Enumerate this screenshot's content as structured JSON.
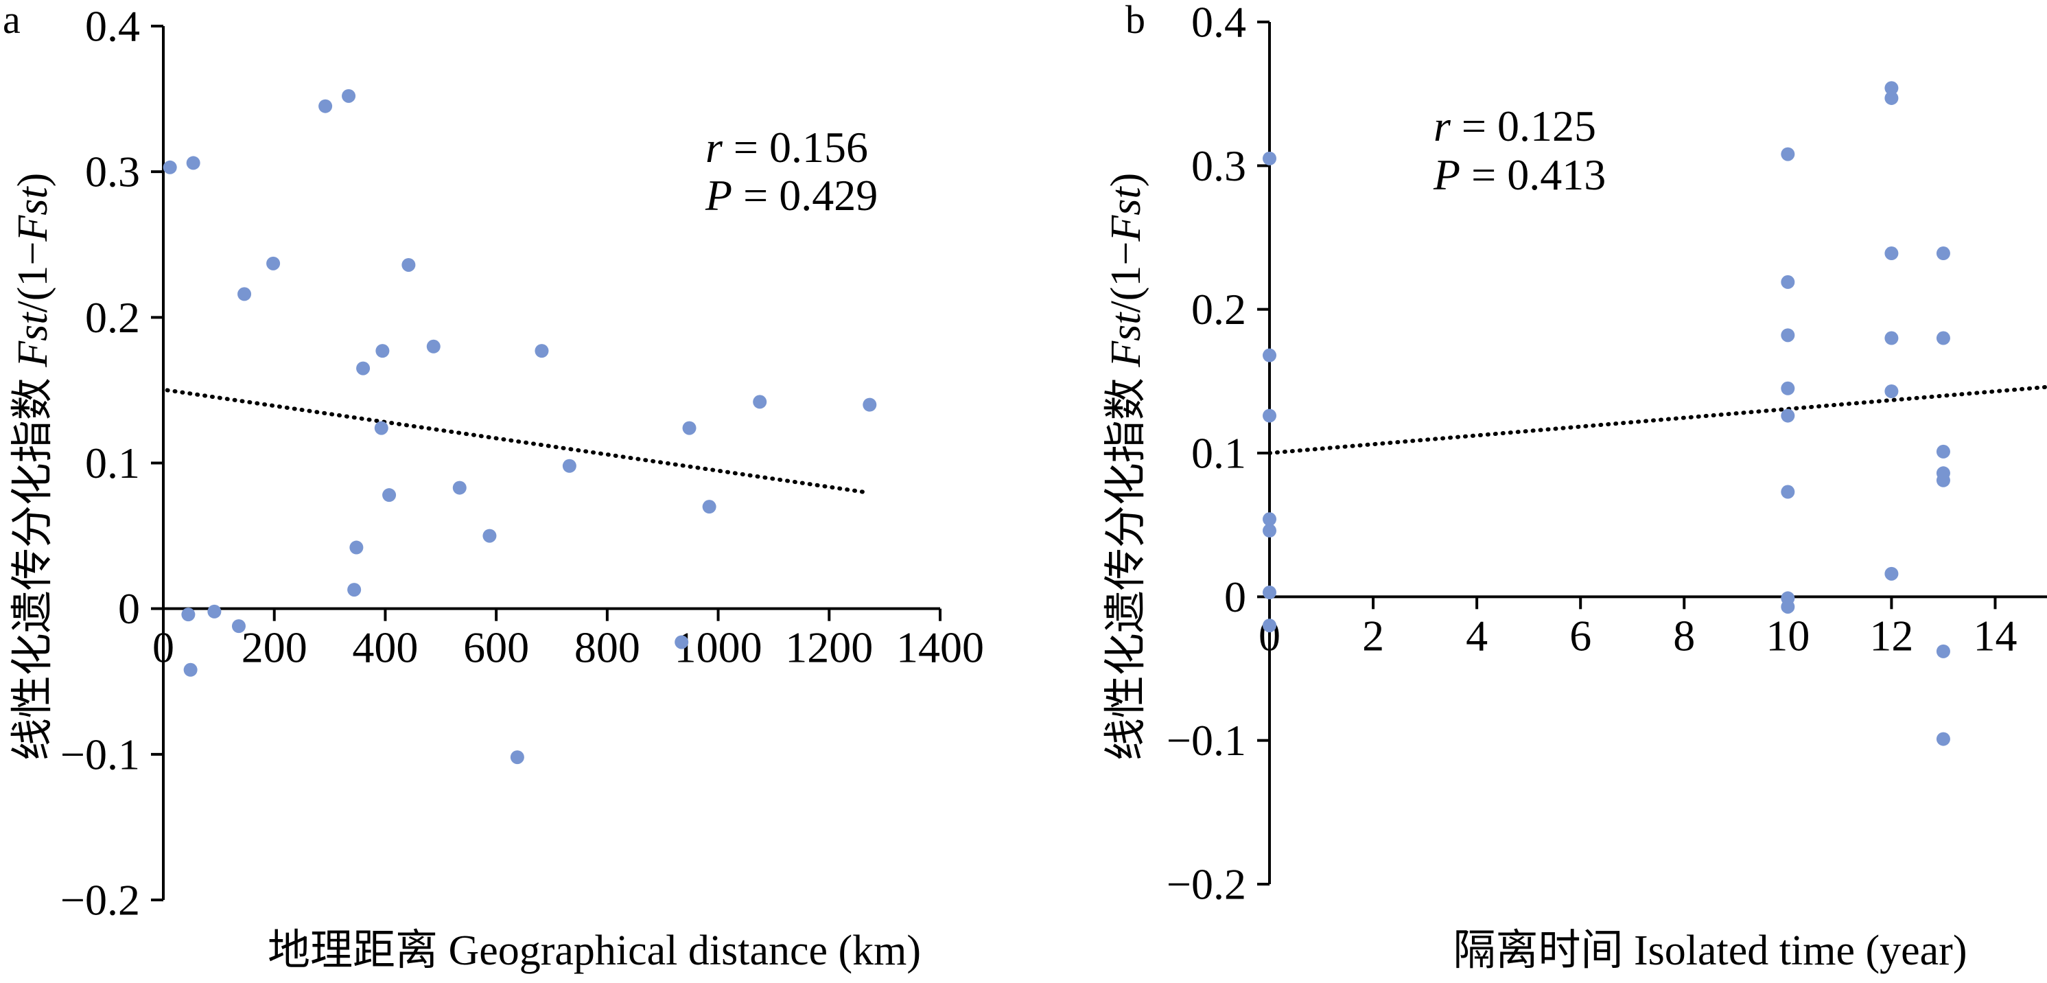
{
  "chart_data": [
    {
      "type": "scatter",
      "panel_label": "a",
      "xlabel": "地理距离 Geographical distance (km)",
      "ylabel": [
        {
          "text": "线性化遗传分化指数 ",
          "italic": false
        },
        {
          "text": "Fst",
          "italic": true
        },
        {
          "text": "/(1−",
          "italic": false
        },
        {
          "text": "Fst",
          "italic": true
        },
        {
          "text": ")",
          "italic": false
        }
      ],
      "xlim": [
        0,
        1400
      ],
      "ylim": [
        -0.2,
        0.4
      ],
      "xticks": {
        "values": [
          0,
          200,
          400,
          600,
          800,
          1000,
          1200,
          1400
        ],
        "labels": [
          "0",
          "200",
          "400",
          "600",
          "800",
          "1000",
          "1200",
          "1400"
        ]
      },
      "yticks": {
        "values": [
          0.4,
          0.3,
          0.2,
          0.1,
          0,
          -0.1,
          -0.2
        ],
        "labels": [
          "0.4",
          "0.3",
          "0.2",
          "0.1",
          "0",
          "−0.1",
          "−0.2"
        ]
      },
      "grid": false,
      "point_color": "#7895D1",
      "series": [
        {
          "x": [
            12,
            54,
            292,
            334,
            198,
            146,
            442,
            487,
            395,
            360,
            682,
            393,
            1075,
            1273,
            948,
            732,
            534,
            407,
            984,
            588,
            348,
            344,
            45,
            92,
            136,
            49,
            934,
            638
          ],
          "y": [
            0.303,
            0.306,
            0.345,
            0.352,
            0.237,
            0.216,
            0.236,
            0.18,
            0.177,
            0.165,
            0.177,
            0.124,
            0.142,
            0.14,
            0.124,
            0.098,
            0.083,
            0.078,
            0.07,
            0.05,
            0.042,
            0.013,
            -0.004,
            -0.002,
            -0.012,
            -0.042,
            -0.023,
            -0.102
          ]
        }
      ],
      "trendline": {
        "style": "dotted",
        "color": "#000000",
        "x": [
          7,
          1264
        ],
        "y": [
          0.15,
          0.08
        ]
      },
      "annotations": [
        {
          "symbol": "r",
          "text": " = 0.156"
        },
        {
          "symbol": "P",
          "text": " = 0.429"
        }
      ]
    },
    {
      "type": "scatter",
      "panel_label": "b",
      "xlabel": "隔离时间 Isolated time (year)",
      "ylabel": [
        {
          "text": "线性化遗传分化指数 ",
          "italic": false
        },
        {
          "text": "Fst",
          "italic": true
        },
        {
          "text": "/(1−",
          "italic": false
        },
        {
          "text": "Fst",
          "italic": true
        },
        {
          "text": ")",
          "italic": false
        }
      ],
      "xlim": [
        0,
        15
      ],
      "ylim": [
        -0.2,
        0.4
      ],
      "xticks": {
        "values": [
          0,
          2,
          4,
          6,
          8,
          10,
          12,
          14
        ],
        "labels": [
          "0",
          "2",
          "4",
          "6",
          "8",
          "10",
          "12",
          "14"
        ]
      },
      "yticks": {
        "values": [
          0.4,
          0.3,
          0.2,
          0.1,
          0,
          -0.1,
          -0.2
        ],
        "labels": [
          "0.4",
          "0.3",
          "0.2",
          "0.1",
          "0",
          "−0.1",
          "−0.2"
        ]
      },
      "grid": false,
      "point_color": "#7895D1",
      "series": [
        {
          "x": [
            0,
            0,
            0,
            0,
            0,
            0,
            0,
            10,
            10,
            10,
            10,
            10,
            10,
            10,
            10,
            12,
            12,
            12,
            12,
            12,
            12,
            13,
            13,
            13,
            13,
            13,
            13,
            13
          ],
          "y": [
            0.305,
            0.168,
            0.126,
            0.054,
            0.046,
            0.003,
            -0.02,
            0.308,
            0.219,
            0.182,
            0.145,
            0.126,
            0.073,
            -0.001,
            -0.007,
            0.354,
            0.347,
            0.239,
            0.18,
            0.143,
            0.016,
            0.239,
            0.18,
            0.101,
            0.086,
            0.081,
            -0.038,
            -0.099
          ]
        }
      ],
      "trendline": {
        "style": "dotted",
        "color": "#000000",
        "x": [
          0,
          15
        ],
        "y": [
          0.1,
          0.146
        ]
      },
      "annotations": [
        {
          "symbol": "r",
          "text": " = 0.125"
        },
        {
          "symbol": "P",
          "text": " = 0.413"
        }
      ]
    }
  ]
}
